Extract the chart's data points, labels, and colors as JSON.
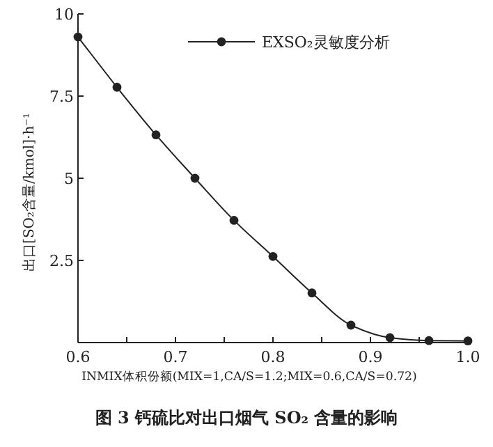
{
  "chart_data": {
    "type": "line",
    "title": "图 3 钙硫比对出口烟气 SO₂ 含量的影响",
    "xlabel": "INMIX体积份额(MIX=1,CA/S=1.2;MIX=0.6,CA/S=0.72)",
    "ylabel": "出口[SO₂含量/kmol]·h⁻¹",
    "x": [
      0.6,
      0.64,
      0.68,
      0.72,
      0.76,
      0.8,
      0.84,
      0.88,
      0.92,
      0.96,
      1.0
    ],
    "series": [
      {
        "name": "EXSO₂灵敏度分析",
        "color": "#222222",
        "values": [
          9.3,
          7.77,
          6.32,
          5.0,
          3.72,
          2.62,
          1.51,
          0.53,
          0.15,
          0.06,
          0.05
        ]
      }
    ],
    "xlim": [
      0.6,
      1.0
    ],
    "ylim": [
      0,
      10
    ],
    "xticks": [
      0.6,
      {
        "value": 0.65,
        "label": null
      },
      0.7,
      {
        "value": 0.75,
        "label": null
      },
      0.8,
      {
        "value": 0.85,
        "label": null
      },
      0.9,
      {
        "value": 0.95,
        "label": null
      },
      {
        "value": 1.0,
        "label": "1.0"
      }
    ],
    "yticks": [
      {
        "value": 2.5,
        "label": "2.5"
      },
      {
        "value": 5,
        "label": "5"
      },
      {
        "value": 7.5,
        "label": "7.5"
      },
      10
    ],
    "marker": "circle",
    "line_style": "solid",
    "legend": "top right",
    "grid": false
  }
}
